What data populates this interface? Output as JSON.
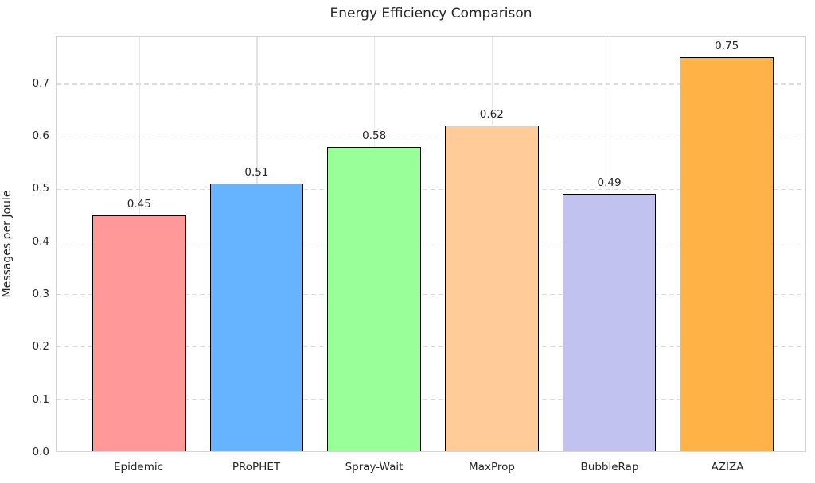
{
  "chart_data": {
    "type": "bar",
    "title": "Energy Efficiency Comparison",
    "xlabel": "",
    "ylabel": "Messages per Joule",
    "categories": [
      "Epidemic",
      "PRoPHET",
      "Spray-Wait",
      "MaxProp",
      "BubbleRap",
      "AZIZA"
    ],
    "values": [
      0.45,
      0.51,
      0.58,
      0.62,
      0.49,
      0.75
    ],
    "value_labels": [
      "0.45",
      "0.51",
      "0.58",
      "0.62",
      "0.49",
      "0.75"
    ],
    "bar_colors": [
      "#FF9999",
      "#66B3FF",
      "#99FF99",
      "#FFCC99",
      "#C2C2F0",
      "#FFB347"
    ],
    "bar_edge_color": "#000000",
    "yticks": [
      0.0,
      0.1,
      0.2,
      0.3,
      0.4,
      0.5,
      0.6,
      0.7
    ],
    "ytick_labels": [
      "0.0",
      "0.1",
      "0.2",
      "0.3",
      "0.4",
      "0.5",
      "0.6",
      "0.7"
    ],
    "ylim": [
      0,
      0.79
    ],
    "grid": {
      "horizontal": "dashed",
      "vertical": "solid",
      "color": "#dcdcdc"
    },
    "legend": "none",
    "background": "#ffffff",
    "text_color": "#262626"
  }
}
